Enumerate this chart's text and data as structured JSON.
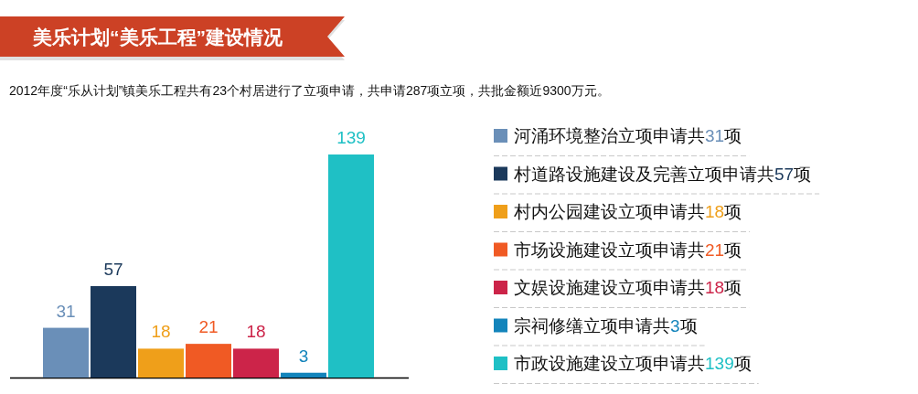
{
  "chart_data": {
    "type": "bar",
    "title": "美乐计划“美乐工程”建设情况",
    "subtitle": "2012年度“乐从计划”镇美乐工程共有23个村居进行了立项申请，共申请287项立项，共批金额近9300万元。",
    "categories": [
      null
    ],
    "series": [
      {
        "name": "河涌环境整治立项申请共31项",
        "color": "#6a8fb8",
        "values": [
          31
        ]
      },
      {
        "name": "村道路设施建设及完善立项申请共57项",
        "color": "#1b395b",
        "values": [
          57
        ]
      },
      {
        "name": "村内公园建设立项申请共18项",
        "color": "#ef9f1a",
        "values": [
          18
        ]
      },
      {
        "name": "市场设施建设立项申请共21项",
        "color": "#f05a24",
        "values": [
          21
        ]
      },
      {
        "name": "文娱设施建设立项申请共18项",
        "color": "#cc2449",
        "values": [
          18
        ]
      },
      {
        "name": "宗祠修缮立项申请共3项",
        "color": "#1384bb",
        "values": [
          3
        ]
      },
      {
        "name": "市政设施建设立项申请共139项",
        "color": "#1fc0c5",
        "values": [
          139
        ]
      }
    ],
    "data_labels": true,
    "legend": "right"
  }
}
